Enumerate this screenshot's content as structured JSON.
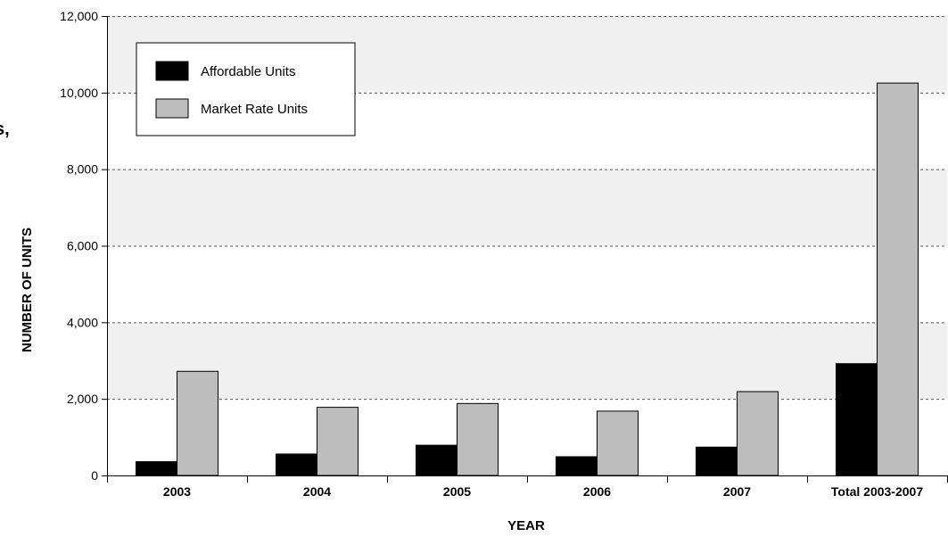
{
  "chart_data": {
    "type": "bar",
    "categories": [
      "2003",
      "2004",
      "2005",
      "2006",
      "2007",
      "Total 2003-2007"
    ],
    "series": [
      {
        "name": "Affordable Units",
        "color": "#000000",
        "values": [
          360,
          560,
          790,
          490,
          740,
          2920
        ]
      },
      {
        "name": "Market Rate Units",
        "color": "#bdbdbd",
        "values": [
          2720,
          1780,
          1880,
          1680,
          2190,
          10250
        ]
      }
    ],
    "xlabel": "YEAR",
    "ylabel": "NUMBER OF UNITS",
    "ylim": [
      0,
      12000
    ],
    "yticks": [
      0,
      2000,
      4000,
      6000,
      8000,
      10000,
      12000
    ],
    "ytick_labels": [
      "0",
      "2,000",
      "4,000",
      "6,000",
      "8,000",
      "10,000",
      "12,000"
    ],
    "grid": true,
    "legend_position": "top-left",
    "band_colors": [
      "#ffffff",
      "#f0f0f0"
    ],
    "left_edge_text": "s,"
  }
}
